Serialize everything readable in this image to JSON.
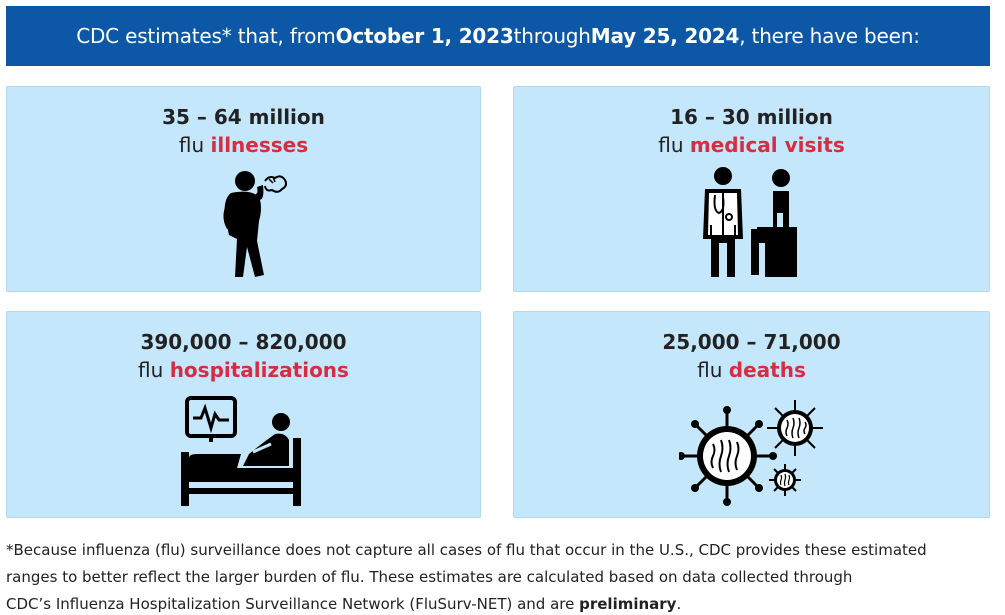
{
  "banner": {
    "prefix": "CDC estimates* that, from ",
    "start_date": "October 1, 2023",
    "middle": " through ",
    "end_date": "May 25, 2024",
    "suffix": ", there have been:"
  },
  "cards": [
    {
      "range": "35 – 64 million",
      "prefix": "flu ",
      "highlight": "illnesses",
      "icon": "sick-person-coughing-icon"
    },
    {
      "range": "16 – 30 million",
      "prefix": "flu ",
      "highlight": "medical visits",
      "icon": "doctor-patient-icon"
    },
    {
      "range": "390,000 – 820,000",
      "prefix": "flu ",
      "highlight": "hospitalizations",
      "icon": "hospital-bed-icon"
    },
    {
      "range": "25,000 – 71,000",
      "prefix": "flu ",
      "highlight": "deaths",
      "icon": "virus-icon"
    }
  ],
  "footnote": {
    "line1": "*Because influenza (flu) surveillance does not capture all cases of flu that occur in the U.S., CDC provides these estimated",
    "line2": "ranges to better reflect the larger burden of flu. These estimates are calculated based on data collected through",
    "line3_prefix": "CDC’s Influenza Hospitalization Surveillance Network (FluSurv-NET) and are ",
    "line3_bold": "preliminary",
    "line3_suffix": "."
  },
  "colors": {
    "banner_bg": "#0d58a6",
    "card_bg": "#c5e7fb",
    "highlight": "#d72d40"
  }
}
